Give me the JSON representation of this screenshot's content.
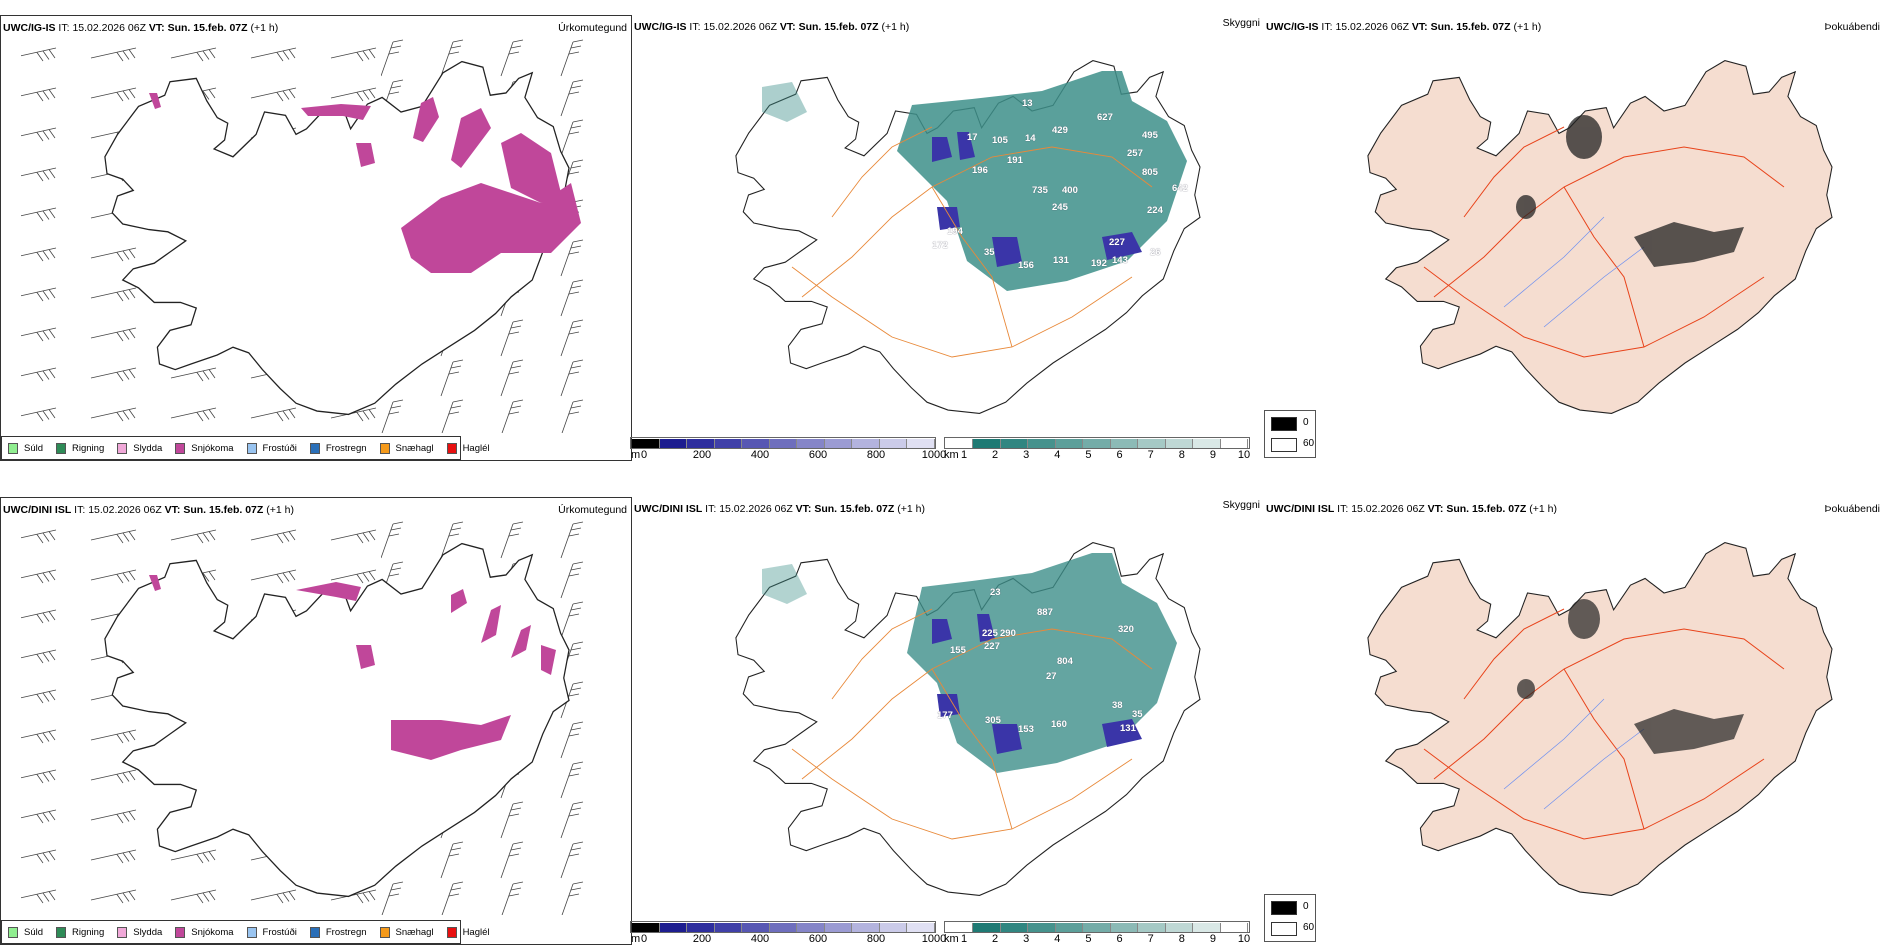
{
  "rows": [
    {
      "model": "UWC/IG-IS",
      "it_label": "IT:",
      "it_value": "15.02.2026 06Z",
      "vt_label": "VT:",
      "vt_value": "Sun. 15.feb. 07Z",
      "lead": "(+1 h)",
      "visibility_labels": [
        "17",
        "105",
        "13",
        "14",
        "191",
        "196",
        "429",
        "627",
        "495",
        "257",
        "805",
        "735",
        "400",
        "245",
        "642",
        "224",
        "194",
        "172",
        "35",
        "227",
        "156",
        "131",
        "192",
        "143",
        "26"
      ]
    },
    {
      "model": "UWC/DINI ISL",
      "it_label": "IT:",
      "it_value": "15.02.2026 06Z",
      "vt_label": "VT:",
      "vt_value": "Sun. 15.feb. 07Z",
      "lead": "(+1 h)",
      "visibility_labels": [
        "23",
        "887",
        "225",
        "290",
        "227",
        "155",
        "320",
        "804",
        "27",
        "177",
        "305",
        "153",
        "160",
        "38",
        "131",
        "35"
      ]
    }
  ],
  "panels": {
    "precip_type": {
      "field_name": "Úrkomutegund",
      "legend": [
        {
          "label": "Súld",
          "color": "#90ee90"
        },
        {
          "label": "Rigning",
          "color": "#2e8b57"
        },
        {
          "label": "Slydda",
          "color": "#f0a8d8"
        },
        {
          "label": "Snjókoma",
          "color": "#c0479a"
        },
        {
          "label": "Frostúði",
          "color": "#99c4f0"
        },
        {
          "label": "Frostregn",
          "color": "#2a6fb8"
        },
        {
          "label": "Snæhagl",
          "color": "#f59a1b"
        },
        {
          "label": "Haglél",
          "color": "#e81010"
        }
      ]
    },
    "visibility": {
      "field_name": "Skyggni",
      "m_unit": "m",
      "m_ticks": [
        "0",
        "200",
        "400",
        "600",
        "800",
        "1000"
      ],
      "m_colors": [
        "#000000",
        "#1d1d8f",
        "#2e2e9e",
        "#4040a8",
        "#5757b3",
        "#6e6ebd",
        "#8585c8",
        "#9b9bd3",
        "#b3b3de",
        "#cbcbe9",
        "#e0e0f3"
      ],
      "km_unit": "km",
      "km_ticks": [
        "1",
        "2",
        "3",
        "4",
        "5",
        "6",
        "7",
        "8",
        "9",
        "10"
      ],
      "km_colors": [
        "#ffffff",
        "#1f7a74",
        "#318681",
        "#46928d",
        "#5c9f9a",
        "#74aca8",
        "#8cbab6",
        "#a5c9c5",
        "#bfd8d5",
        "#d9e8e6",
        "#ffffff"
      ]
    },
    "fog": {
      "field_name": "Þokuábendi",
      "legend": [
        {
          "label": "0",
          "color": "#000000"
        },
        {
          "label": "60",
          "color": "#ffffff"
        }
      ]
    }
  },
  "colors": {
    "land_fog": "#f5ddd0",
    "roads_orange": "#e8893a",
    "roads_red": "#e8431a",
    "rivers": "#6d8ff0",
    "snow": "#c0479a",
    "vis_teal": "#3d8f8a",
    "vis_low": "#3a35a8"
  }
}
